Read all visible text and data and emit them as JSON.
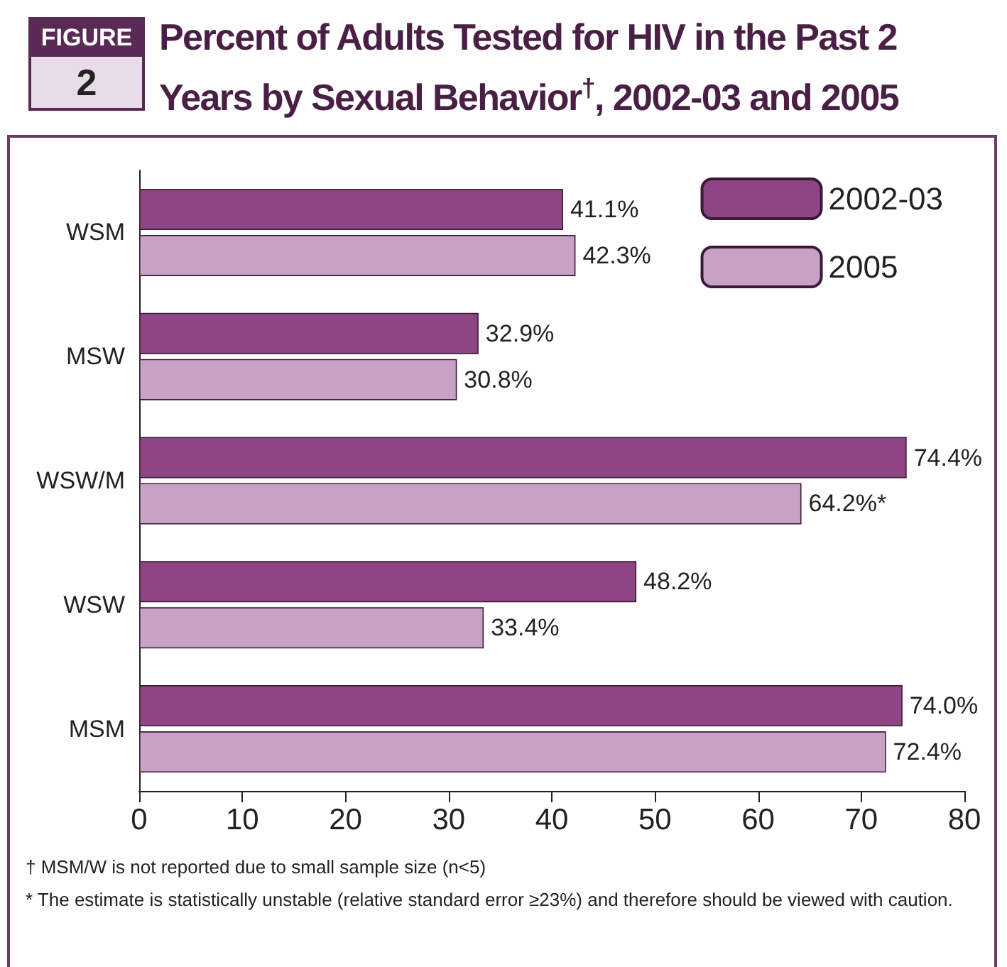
{
  "chart_data": {
    "type": "bar",
    "orientation": "horizontal",
    "title": "Percent of Adults Tested for HIV in the Past 2 Years by Sexual Behavior$^{†}$, 2002-03 and 2005",
    "categories": [
      "WSM",
      "MSW",
      "WSW/M",
      "WSW",
      "MSM"
    ],
    "series": [
      {
        "name": "2002-03",
        "color": "#8e4585",
        "values": [
          41.1,
          32.9,
          74.4,
          48.2,
          74.0
        ],
        "value_labels": [
          "41.1%",
          "32.9%",
          "74.4%",
          "48.2%",
          "74.0%"
        ]
      },
      {
        "name": "2005",
        "color": "#c8a2c5",
        "values": [
          42.3,
          30.8,
          64.2,
          33.4,
          72.4
        ],
        "value_labels": [
          "42.3%",
          "30.8%",
          "64.2%*",
          "33.4%",
          "72.4%"
        ]
      }
    ],
    "xlim": [
      0,
      80
    ],
    "xticks": [
      0,
      10,
      20,
      30,
      40,
      50,
      60,
      70,
      80
    ],
    "grid": false,
    "legend": "top right",
    "annotations": [
      "FIGURE",
      "2",
      "† MSM/W is not reported due to small sample size (n<5)",
      "* The estimate is statistically unstable (relative standard error ≥23%) and therefore should be viewed with caution."
    ]
  }
}
